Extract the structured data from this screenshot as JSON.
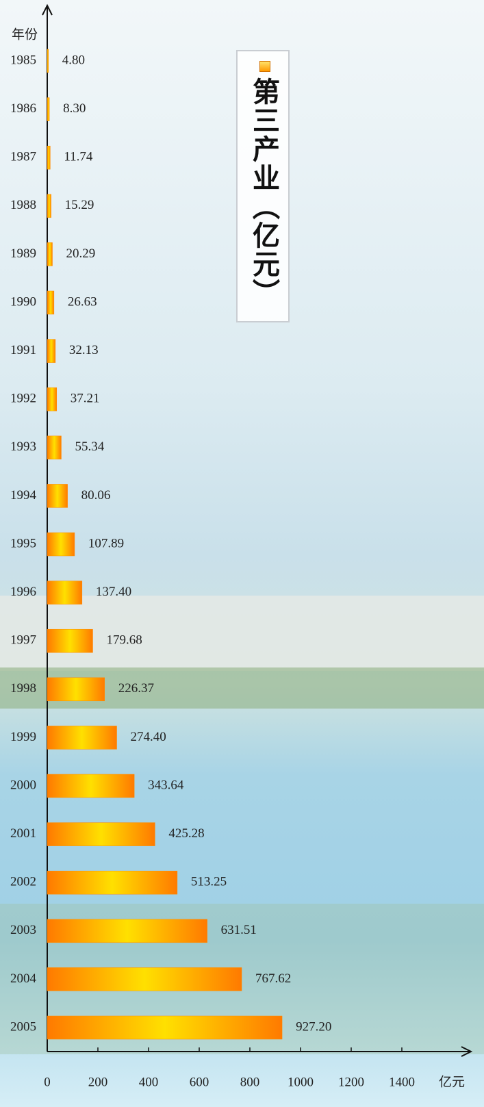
{
  "chart_data": {
    "type": "hbar",
    "y_label": "年份",
    "x_label": "亿元",
    "categories": [
      "1985",
      "1986",
      "1987",
      "1988",
      "1989",
      "1990",
      "1991",
      "1992",
      "1993",
      "1994",
      "1995",
      "1996",
      "1997",
      "1998",
      "1999",
      "2000",
      "2001",
      "2002",
      "2003",
      "2004",
      "2005"
    ],
    "series": [
      {
        "name": "第三产业（亿元）",
        "color": "#ff8c00",
        "values": [
          4.8,
          8.3,
          11.74,
          15.29,
          20.29,
          26.63,
          32.13,
          37.21,
          55.34,
          80.06,
          107.89,
          137.4,
          179.68,
          226.37,
          274.4,
          343.64,
          425.28,
          513.25,
          631.51,
          767.62,
          927.2
        ],
        "value_labels": [
          "4.80",
          "8.30",
          "11.74",
          "15.29",
          "20.29",
          "26.63",
          "32.13",
          "37.21",
          "55.34",
          "80.06",
          "107.89",
          "137.40",
          "179.68",
          "226.37",
          "274.40",
          "343.64",
          "425.28",
          "513.25",
          "631.51",
          "767.62",
          "927.20"
        ]
      }
    ],
    "xlim": [
      0,
      1600
    ],
    "xticks": [
      0,
      200,
      400,
      600,
      800,
      1000,
      1200,
      1400
    ],
    "grid": false
  }
}
